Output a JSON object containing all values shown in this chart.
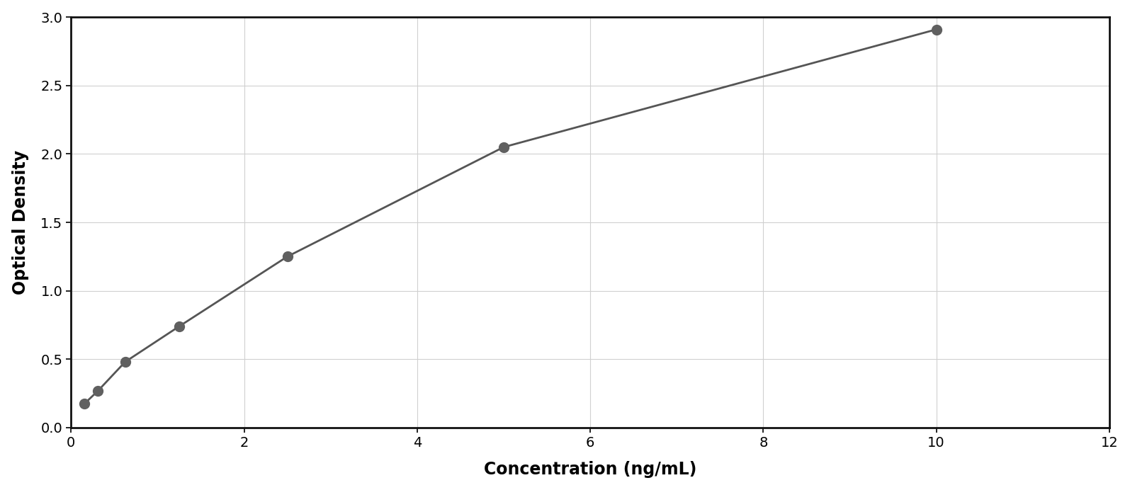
{
  "x_data": [
    0.156,
    0.313,
    0.625,
    1.25,
    2.5,
    5.0,
    10.0
  ],
  "y_data": [
    0.175,
    0.27,
    0.48,
    0.74,
    1.25,
    2.05,
    2.91
  ],
  "xlabel": "Concentration (ng/mL)",
  "ylabel": "Optical Density",
  "xlim": [
    0,
    12
  ],
  "ylim": [
    0,
    3
  ],
  "xticks": [
    0,
    2,
    4,
    6,
    8,
    10,
    12
  ],
  "yticks": [
    0,
    0.5,
    1.0,
    1.5,
    2.0,
    2.5,
    3.0
  ],
  "marker_color": "#606060",
  "line_color": "#555555",
  "grid_color": "#d0d0d0",
  "background_color": "#ffffff",
  "plot_background": "#ffffff",
  "border_color": "#111111",
  "marker_size": 10,
  "line_width": 2.0,
  "xlabel_fontsize": 17,
  "ylabel_fontsize": 17,
  "tick_fontsize": 14,
  "xlabel_fontweight": "bold",
  "ylabel_fontweight": "bold"
}
